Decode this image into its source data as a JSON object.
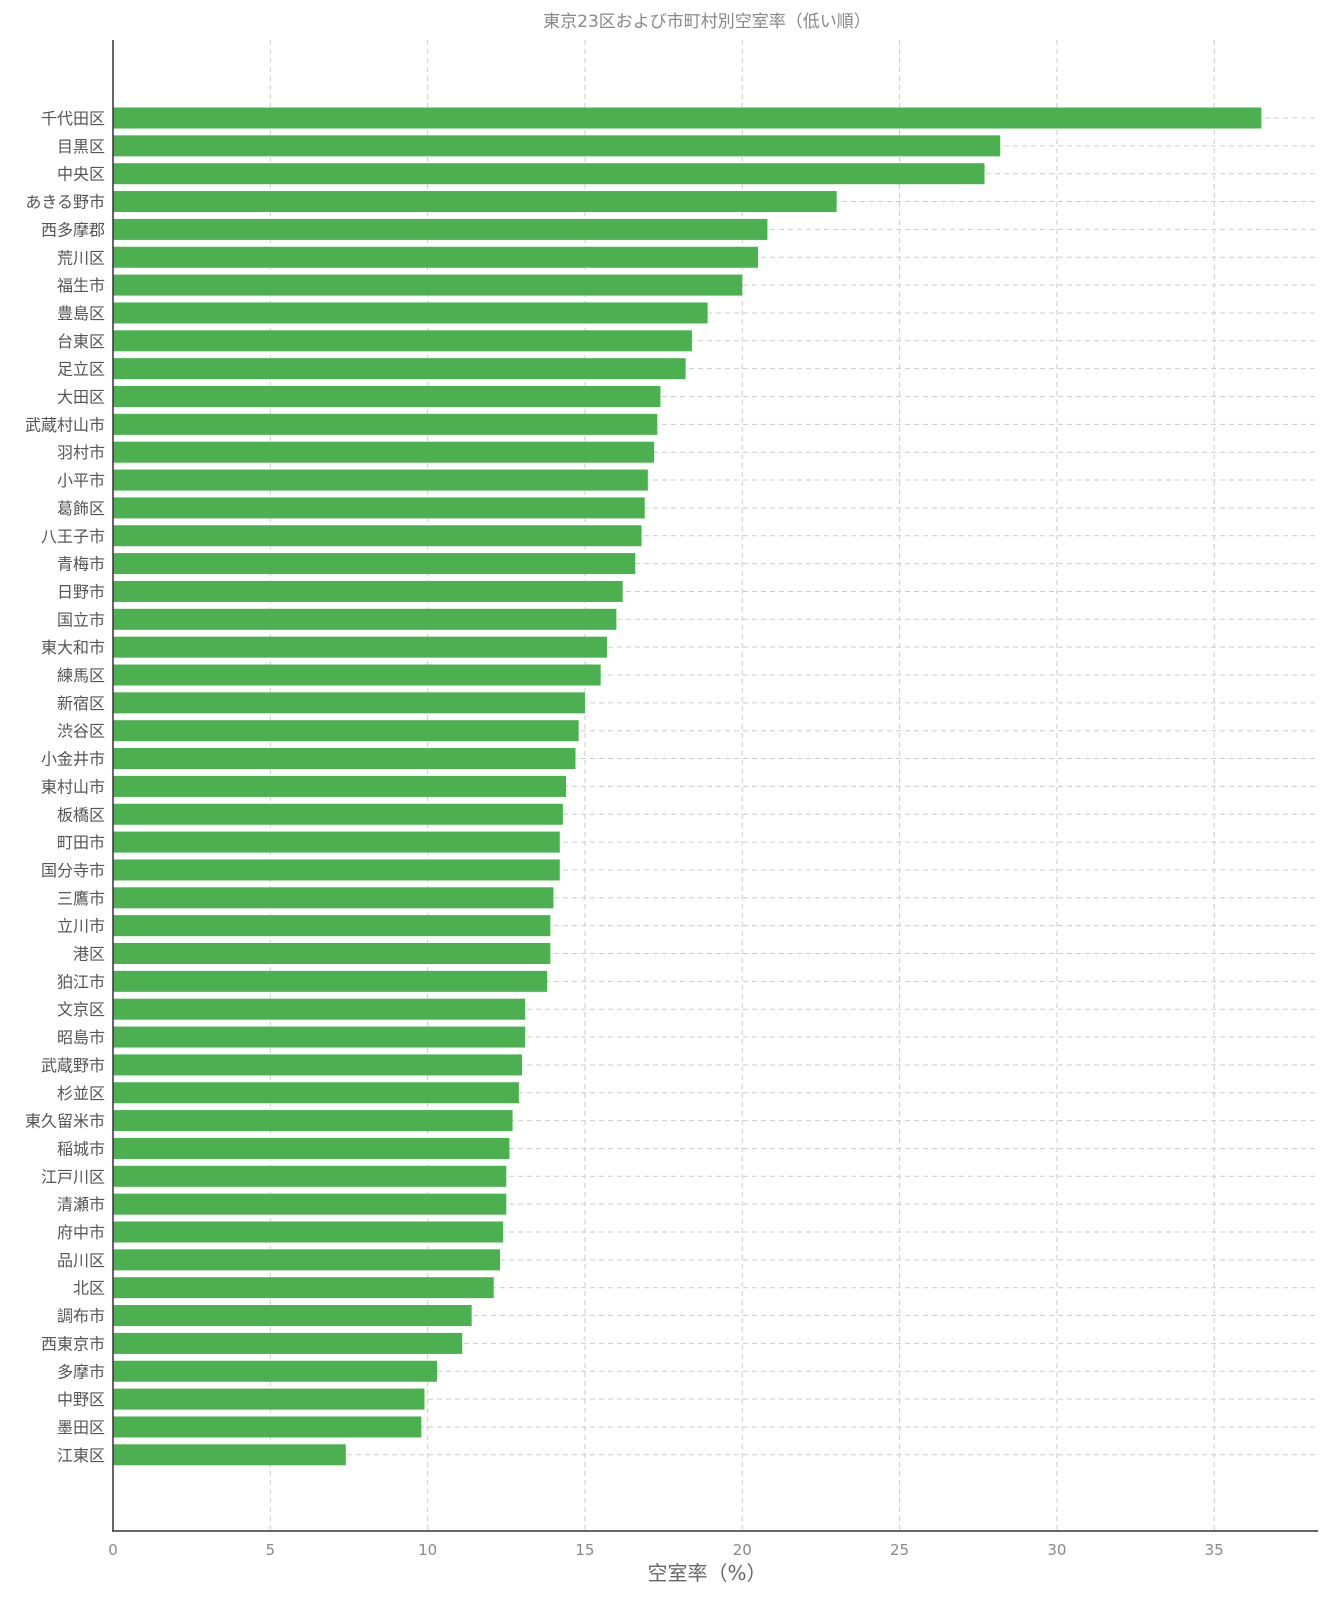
{
  "chart_data": {
    "type": "bar",
    "orientation": "horizontal",
    "title": "東京23区および市町村別空室率（低い順）",
    "xlabel": "空室率（%）",
    "ylabel": "",
    "xlim": [
      0,
      38.3
    ],
    "xticks": [
      0,
      5,
      10,
      15,
      20,
      25,
      30,
      35
    ],
    "grid": true,
    "legend": "none",
    "bar_color": "#4caf50",
    "categories": [
      "千代田区",
      "目黒区",
      "中央区",
      "あきる野市",
      "西多摩郡",
      "荒川区",
      "福生市",
      "豊島区",
      "台東区",
      "足立区",
      "大田区",
      "武蔵村山市",
      "羽村市",
      "小平市",
      "葛飾区",
      "八王子市",
      "青梅市",
      "日野市",
      "国立市",
      "東大和市",
      "練馬区",
      "新宿区",
      "渋谷区",
      "小金井市",
      "東村山市",
      "板橋区",
      "町田市",
      "国分寺市",
      "三鷹市",
      "立川市",
      "港区",
      "狛江市",
      "文京区",
      "昭島市",
      "武蔵野市",
      "杉並区",
      "東久留米市",
      "稲城市",
      "江戸川区",
      "清瀬市",
      "府中市",
      "品川区",
      "北区",
      "調布市",
      "西東京市",
      "多摩市",
      "中野区",
      "墨田区",
      "江東区"
    ],
    "values": [
      36.5,
      28.2,
      27.7,
      23.0,
      20.8,
      20.5,
      20.0,
      18.9,
      18.4,
      18.2,
      17.4,
      17.3,
      17.2,
      17.0,
      16.9,
      16.8,
      16.6,
      16.2,
      16.0,
      15.7,
      15.5,
      15.0,
      14.8,
      14.7,
      14.4,
      14.3,
      14.2,
      14.2,
      14.0,
      13.9,
      13.9,
      13.8,
      13.1,
      13.1,
      13.0,
      12.9,
      12.7,
      12.6,
      12.5,
      12.5,
      12.4,
      12.3,
      12.1,
      11.4,
      11.1,
      10.3,
      9.9,
      9.8,
      7.4
    ]
  }
}
